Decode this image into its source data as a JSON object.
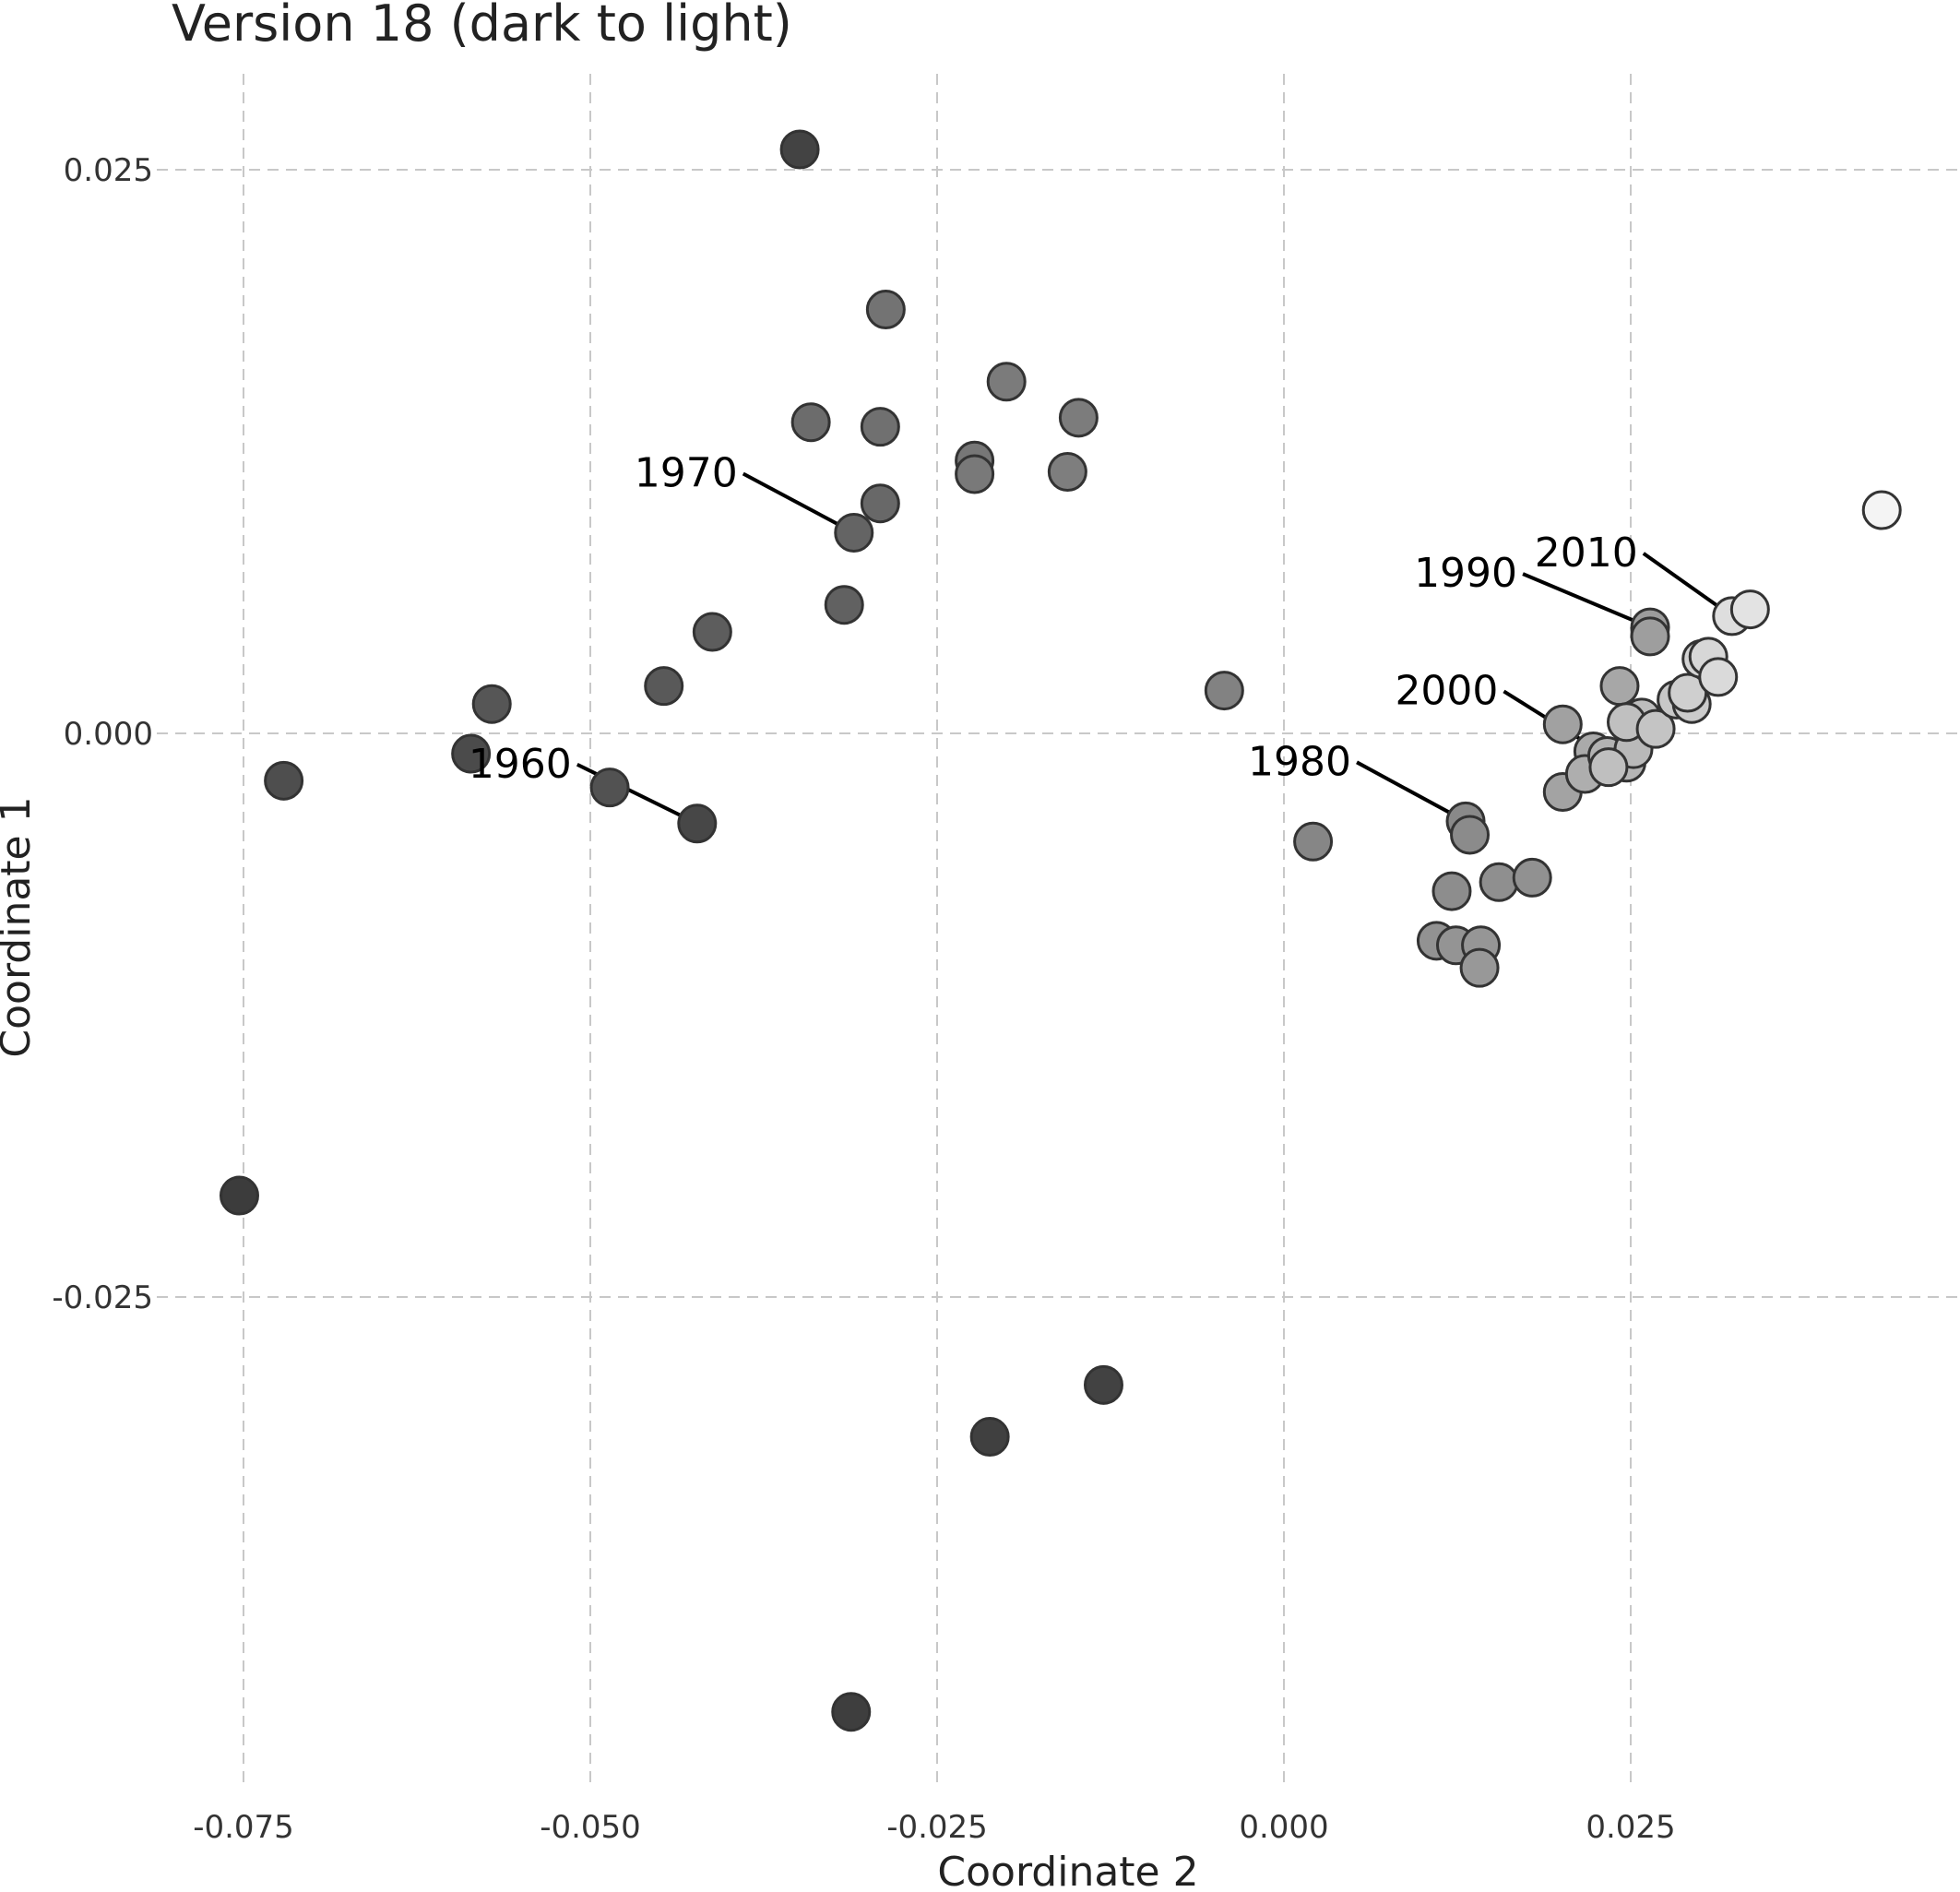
{
  "chart_data": {
    "type": "scatter",
    "title": "Version 18 (dark to light)",
    "xlabel": "Coordinate 2",
    "ylabel": "Coordinate 1",
    "xlim": [
      -0.0835,
      0.0485
    ],
    "ylim": [
      -0.0455,
      0.0327
    ],
    "xticks": [
      -0.075,
      -0.05,
      -0.025,
      0.0,
      0.025
    ],
    "xtick_labels": [
      "-0.075",
      "-0.050",
      "-0.025",
      "0.000",
      "0.025"
    ],
    "yticks": [
      -0.025,
      0.0,
      0.025
    ],
    "ytick_labels": [
      "-0.025",
      "0.000",
      "0.025"
    ],
    "grid": true,
    "color_encoding": "dark to light",
    "points": [
      {
        "x": -0.0753,
        "y": -0.0205,
        "shade": 0.0
      },
      {
        "x": -0.0312,
        "y": -0.0434,
        "shade": 0.01
      },
      {
        "x": -0.0212,
        "y": -0.0312,
        "shade": 0.02
      },
      {
        "x": -0.013,
        "y": -0.0289,
        "shade": 0.03
      },
      {
        "x": -0.0349,
        "y": 0.0259,
        "shade": 0.04
      },
      {
        "x": -0.0423,
        "y": -0.004,
        "shade": 0.06
      },
      {
        "x": -0.0586,
        "y": -0.0009,
        "shade": 0.08
      },
      {
        "x": -0.0721,
        "y": -0.0021,
        "shade": 0.1
      },
      {
        "x": -0.0486,
        "y": -0.0024,
        "shade": 0.12
      },
      {
        "x": -0.0571,
        "y": 0.0013,
        "shade": 0.14
      },
      {
        "x": -0.0447,
        "y": 0.0021,
        "shade": 0.16
      },
      {
        "x": -0.0412,
        "y": 0.0045,
        "shade": 0.18
      },
      {
        "x": -0.0317,
        "y": 0.0057,
        "shade": 0.2
      },
      {
        "x": -0.031,
        "y": 0.0089,
        "shade": 0.22
      },
      {
        "x": -0.0291,
        "y": 0.0102,
        "shade": 0.24
      },
      {
        "x": -0.0341,
        "y": 0.0138,
        "shade": 0.26
      },
      {
        "x": -0.0291,
        "y": 0.0136,
        "shade": 0.28
      },
      {
        "x": -0.0287,
        "y": 0.0188,
        "shade": 0.3
      },
      {
        "x": -0.0223,
        "y": 0.0121,
        "shade": 0.32
      },
      {
        "x": -0.0223,
        "y": 0.0115,
        "shade": 0.33
      },
      {
        "x": -0.02,
        "y": 0.0156,
        "shade": 0.34
      },
      {
        "x": -0.0148,
        "y": 0.014,
        "shade": 0.35
      },
      {
        "x": -0.0156,
        "y": 0.0116,
        "shade": 0.36
      },
      {
        "x": -0.0043,
        "y": 0.0019,
        "shade": 0.38
      },
      {
        "x": 0.0021,
        "y": -0.0048,
        "shade": 0.4
      },
      {
        "x": 0.0131,
        "y": -0.0039,
        "shade": 0.42
      },
      {
        "x": 0.0134,
        "y": -0.0045,
        "shade": 0.43
      },
      {
        "x": 0.0121,
        "y": -0.007,
        "shade": 0.44
      },
      {
        "x": 0.0155,
        "y": -0.0066,
        "shade": 0.45
      },
      {
        "x": 0.0179,
        "y": -0.0064,
        "shade": 0.46
      },
      {
        "x": 0.011,
        "y": -0.0092,
        "shade": 0.47
      },
      {
        "x": 0.0124,
        "y": -0.0094,
        "shade": 0.48
      },
      {
        "x": 0.0142,
        "y": -0.0094,
        "shade": 0.49
      },
      {
        "x": 0.0141,
        "y": -0.0104,
        "shade": 0.5
      },
      {
        "x": 0.0264,
        "y": 0.0047,
        "shade": 0.52
      },
      {
        "x": 0.0264,
        "y": 0.0043,
        "shade": 0.53
      },
      {
        "x": 0.0201,
        "y": 0.0004,
        "shade": 0.55
      },
      {
        "x": 0.0201,
        "y": -0.0026,
        "shade": 0.56
      },
      {
        "x": 0.0242,
        "y": 0.0021,
        "shade": 0.58
      },
      {
        "x": 0.0223,
        "y": -0.0008,
        "shade": 0.6
      },
      {
        "x": 0.0217,
        "y": -0.0018,
        "shade": 0.62
      },
      {
        "x": 0.0233,
        "y": -0.001,
        "shade": 0.64
      },
      {
        "x": 0.0247,
        "y": -0.0013,
        "shade": 0.66
      },
      {
        "x": 0.0252,
        "y": -0.0007,
        "shade": 0.68
      },
      {
        "x": 0.0258,
        "y": 0.0007,
        "shade": 0.7
      },
      {
        "x": 0.0234,
        "y": -0.0015,
        "shade": 0.71
      },
      {
        "x": 0.0247,
        "y": 0.0005,
        "shade": 0.72
      },
      {
        "x": 0.0268,
        "y": 0.0002,
        "shade": 0.74
      },
      {
        "x": 0.0283,
        "y": 0.0015,
        "shade": 0.76
      },
      {
        "x": 0.0294,
        "y": 0.0013,
        "shade": 0.78
      },
      {
        "x": 0.0291,
        "y": 0.0018,
        "shade": 0.8
      },
      {
        "x": 0.0301,
        "y": 0.0033,
        "shade": 0.82
      },
      {
        "x": 0.0306,
        "y": 0.0034,
        "shade": 0.84
      },
      {
        "x": 0.0313,
        "y": 0.0025,
        "shade": 0.86
      },
      {
        "x": 0.0323,
        "y": 0.0052,
        "shade": 0.88
      },
      {
        "x": 0.0336,
        "y": 0.0055,
        "shade": 0.91
      },
      {
        "x": 0.0431,
        "y": 0.0099,
        "shade": 1.0
      }
    ],
    "annotations": [
      {
        "text": "1960",
        "x": -0.0423,
        "y": -0.004
      },
      {
        "text": "1970",
        "x": -0.031,
        "y": 0.0089
      },
      {
        "text": "1980",
        "x": 0.0131,
        "y": -0.0039
      },
      {
        "text": "1990",
        "x": 0.0264,
        "y": 0.0047
      },
      {
        "text": "2000",
        "x": 0.0233,
        "y": -0.001
      },
      {
        "text": "2010",
        "x": 0.0323,
        "y": 0.0052
      }
    ]
  }
}
